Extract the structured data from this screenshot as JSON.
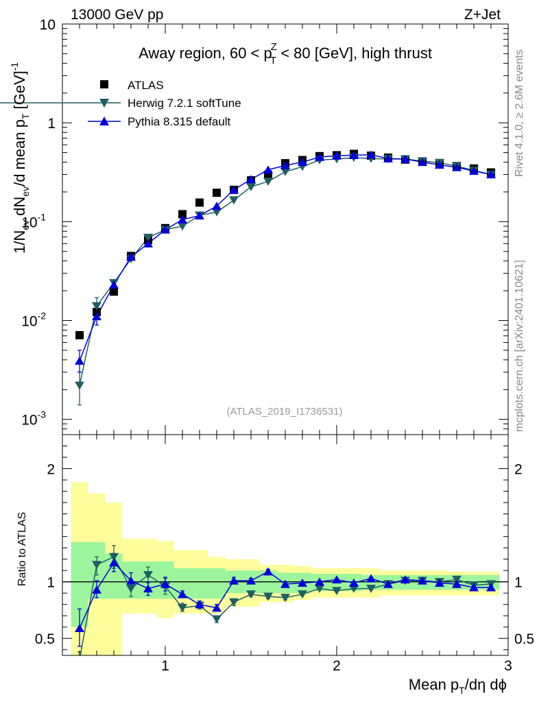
{
  "header": {
    "left": "13000 GeV pp",
    "right": "Z+Jet"
  },
  "side": {
    "rivet": "Rivet 4.1.0, ≥ 2.6M events",
    "mcplots": "mcplots.cern.ch [arXiv:2401.10621]"
  },
  "analysis_id": "(ATLAS_2019_I1736531)",
  "colors": {
    "data": "#000000",
    "herwig": "#1f5f63",
    "pythia": "#0000dd",
    "band_inner": "#9cf59c",
    "band_outer": "#fdfd9c"
  },
  "chart_data": [
    {
      "type": "scatter",
      "title_main": "Away region, 60 < p",
      "title_sup": "Z",
      "title_sub": "T",
      "title_rest": " < 80 [GeV], high thrust",
      "ylabel": "1/N_ev dN_ev/d mean p_T [GeV]^-1",
      "ylabel_parts": {
        "a": "1/N",
        "b": "ev",
        "c": " dN",
        "d": "ev",
        "e": "/d mean p",
        "f": "T",
        "g": " [GeV]",
        "h": "-1"
      },
      "yscale": "log",
      "ylim": [
        0.0007,
        10
      ],
      "xlim": [
        0.4,
        3.0
      ],
      "yticks": [
        {
          "v": 0.001,
          "base": "10",
          "exp": "-3"
        },
        {
          "v": 0.01,
          "base": "10",
          "exp": "-2"
        },
        {
          "v": 0.1,
          "base": "10",
          "exp": "-1"
        },
        {
          "v": 1,
          "base": "1",
          "exp": ""
        },
        {
          "v": 10,
          "base": "10",
          "exp": ""
        }
      ],
      "legend": [
        {
          "key": "data",
          "label": "ATLAS",
          "marker": "square"
        },
        {
          "key": "herwig",
          "label": "Herwig 7.2.1 softTune",
          "marker": "triangle-down"
        },
        {
          "key": "pythia",
          "label": "Pythia 8.315 default",
          "marker": "triangle-up"
        }
      ],
      "x": [
        0.5,
        0.6,
        0.7,
        0.8,
        0.9,
        1.0,
        1.1,
        1.2,
        1.3,
        1.4,
        1.5,
        1.6,
        1.7,
        1.8,
        1.9,
        2.0,
        2.1,
        2.2,
        2.3,
        2.4,
        2.5,
        2.6,
        2.7,
        2.8,
        2.9
      ],
      "series": [
        {
          "name": "ATLAS",
          "key": "data",
          "values": [
            0.0071,
            0.0122,
            0.0196,
            0.045,
            0.065,
            0.086,
            0.119,
            0.156,
            0.196,
            0.21,
            0.262,
            0.298,
            0.39,
            0.42,
            0.46,
            0.47,
            0.485,
            0.465,
            0.445,
            0.425,
            0.405,
            0.385,
            0.365,
            0.345,
            0.315
          ]
        },
        {
          "name": "Herwig 7.2.1 softTune",
          "key": "herwig",
          "values": [
            0.0022,
            0.014,
            0.024,
            0.042,
            0.069,
            0.083,
            0.09,
            0.116,
            0.125,
            0.165,
            0.225,
            0.255,
            0.32,
            0.36,
            0.42,
            0.43,
            0.445,
            0.435,
            0.43,
            0.43,
            0.41,
            0.395,
            0.365,
            0.33,
            0.3
          ]
        },
        {
          "name": "Pythia 8.315 default",
          "key": "pythia",
          "values": [
            0.0039,
            0.011,
            0.023,
            0.044,
            0.06,
            0.083,
            0.105,
            0.115,
            0.144,
            0.21,
            0.268,
            0.335,
            0.37,
            0.4,
            0.45,
            0.465,
            0.47,
            0.475,
            0.435,
            0.43,
            0.4,
            0.375,
            0.355,
            0.325,
            0.3
          ]
        }
      ],
      "errors": {
        "herwig": [
          [
            0.0014,
            0.003
          ],
          [
            0.0115,
            0.017
          ]
        ],
        "pythia": [
          [
            0.003,
            0.005
          ],
          [
            0.009,
            0.013
          ]
        ]
      }
    },
    {
      "type": "line",
      "ylabel": "Ratio to ATLAS",
      "xlabel_parts": {
        "a": "Mean p",
        "b": "T",
        "c": "/dη dϕ"
      },
      "ylim": [
        0.35,
        2.3
      ],
      "xlim": [
        0.4,
        3.0
      ],
      "xticks": [
        {
          "v": 1,
          "label": "1"
        },
        {
          "v": 2,
          "label": "2"
        },
        {
          "v": 3,
          "label": "3"
        }
      ],
      "yticks": [
        {
          "v": 0.5,
          "label": "0.5"
        },
        {
          "v": 1,
          "label": "1"
        },
        {
          "v": 2,
          "label": "2"
        }
      ],
      "bin_edges": [
        0.45,
        0.55,
        0.65,
        0.75,
        0.85,
        0.95,
        1.05,
        1.15,
        1.25,
        1.35,
        1.45,
        1.55,
        1.65,
        1.75,
        1.85,
        1.95,
        2.05,
        2.15,
        2.25,
        2.35,
        2.45,
        2.55,
        2.65,
        2.75,
        2.85,
        2.95
      ],
      "band_inner": [
        [
          0.6,
          1.35
        ],
        [
          0.85,
          1.35
        ],
        [
          0.85,
          1.25
        ],
        [
          0.85,
          1.18
        ],
        [
          0.85,
          1.18
        ],
        [
          0.85,
          1.18
        ],
        [
          0.85,
          1.12
        ],
        [
          0.85,
          1.12
        ],
        [
          0.85,
          1.12
        ],
        [
          0.9,
          1.1
        ],
        [
          0.9,
          1.1
        ],
        [
          0.9,
          1.1
        ],
        [
          0.9,
          1.08
        ],
        [
          0.9,
          1.08
        ],
        [
          0.92,
          1.07
        ],
        [
          0.92,
          1.07
        ],
        [
          0.92,
          1.07
        ],
        [
          0.93,
          1.06
        ],
        [
          0.93,
          1.06
        ],
        [
          0.93,
          1.06
        ],
        [
          0.93,
          1.06
        ],
        [
          0.93,
          1.06
        ],
        [
          0.93,
          1.06
        ],
        [
          0.93,
          1.06
        ],
        [
          0.93,
          1.06
        ]
      ],
      "band_outer": [
        [
          0.3,
          1.88
        ],
        [
          0.3,
          1.78
        ],
        [
          0.3,
          1.7
        ],
        [
          0.72,
          1.38
        ],
        [
          0.72,
          1.38
        ],
        [
          0.68,
          1.36
        ],
        [
          0.72,
          1.28
        ],
        [
          0.72,
          1.28
        ],
        [
          0.72,
          1.22
        ],
        [
          0.78,
          1.2
        ],
        [
          0.78,
          1.2
        ],
        [
          0.82,
          1.15
        ],
        [
          0.82,
          1.15
        ],
        [
          0.84,
          1.14
        ],
        [
          0.86,
          1.12
        ],
        [
          0.86,
          1.12
        ],
        [
          0.86,
          1.12
        ],
        [
          0.86,
          1.12
        ],
        [
          0.88,
          1.1
        ],
        [
          0.88,
          1.1
        ],
        [
          0.88,
          1.1
        ],
        [
          0.88,
          1.1
        ],
        [
          0.88,
          1.09
        ],
        [
          0.88,
          1.09
        ],
        [
          0.88,
          1.09
        ]
      ],
      "x": [
        0.5,
        0.6,
        0.7,
        0.8,
        0.9,
        1.0,
        1.1,
        1.2,
        1.3,
        1.4,
        1.5,
        1.6,
        1.7,
        1.8,
        1.9,
        2.0,
        2.1,
        2.2,
        2.3,
        2.4,
        2.5,
        2.6,
        2.7,
        2.8,
        2.9
      ],
      "series": [
        {
          "name": "Herwig 7.2.1 softTune",
          "key": "herwig",
          "values": [
            0.31,
            1.15,
            1.22,
            0.94,
            1.06,
            0.96,
            0.77,
            0.79,
            0.67,
            0.82,
            0.89,
            0.87,
            0.86,
            0.89,
            0.94,
            0.92,
            0.94,
            0.94,
            0.98,
            1.01,
            1.01,
            1.0,
            1.02,
            0.97,
            0.98
          ],
          "err": [
            [
              0.25,
              0.38
            ],
            [
              1.06,
              1.22
            ],
            [
              1.12,
              1.32
            ],
            [
              0.87,
              1.01
            ],
            [
              0.99,
              1.13
            ],
            [
              0.89,
              1.03
            ],
            [
              0.74,
              0.81
            ],
            [
              0.76,
              0.82
            ],
            [
              0.64,
              0.7
            ],
            [
              0.79,
              0.85
            ],
            [
              0.87,
              0.91
            ],
            [
              0.85,
              0.89
            ],
            [
              0.84,
              0.88
            ],
            [
              0.88,
              0.9
            ],
            [
              0.93,
              0.95
            ],
            [
              0.91,
              0.93
            ],
            [
              0.93,
              0.95
            ],
            [
              0.93,
              0.95
            ],
            [
              0.97,
              0.99
            ],
            [
              1.0,
              1.02
            ],
            [
              1.0,
              1.02
            ],
            [
              0.99,
              1.01
            ],
            [
              1.01,
              1.03
            ],
            [
              0.96,
              0.98
            ],
            [
              0.97,
              0.99
            ]
          ]
        },
        {
          "name": "Pythia 8.315 default",
          "key": "pythia",
          "values": [
            0.59,
            0.93,
            1.17,
            1.01,
            0.94,
            0.98,
            0.89,
            0.8,
            0.77,
            1.01,
            1.01,
            1.09,
            0.98,
            0.99,
            1.0,
            1.02,
            0.99,
            1.03,
            0.98,
            1.02,
            1.01,
            0.99,
            0.98,
            0.95,
            0.95
          ],
          "err": [
            [
              0.43,
              0.76
            ],
            [
              0.86,
              1.01
            ],
            [
              1.09,
              1.25
            ],
            [
              0.94,
              1.08
            ],
            [
              0.88,
              1.0
            ],
            [
              0.92,
              1.04
            ],
            [
              0.86,
              0.92
            ],
            [
              0.77,
              0.83
            ],
            [
              0.74,
              0.8
            ],
            [
              0.98,
              1.04
            ],
            [
              0.99,
              1.03
            ],
            [
              1.07,
              1.11
            ],
            [
              0.97,
              0.99
            ],
            [
              0.98,
              1.0
            ],
            [
              0.99,
              1.01
            ],
            [
              1.01,
              1.03
            ],
            [
              0.98,
              1.0
            ],
            [
              1.02,
              1.04
            ],
            [
              0.97,
              0.99
            ],
            [
              1.01,
              1.03
            ],
            [
              1.0,
              1.02
            ],
            [
              0.98,
              1.0
            ],
            [
              0.97,
              0.99
            ],
            [
              0.94,
              0.96
            ],
            [
              0.94,
              0.96
            ]
          ]
        }
      ]
    }
  ]
}
